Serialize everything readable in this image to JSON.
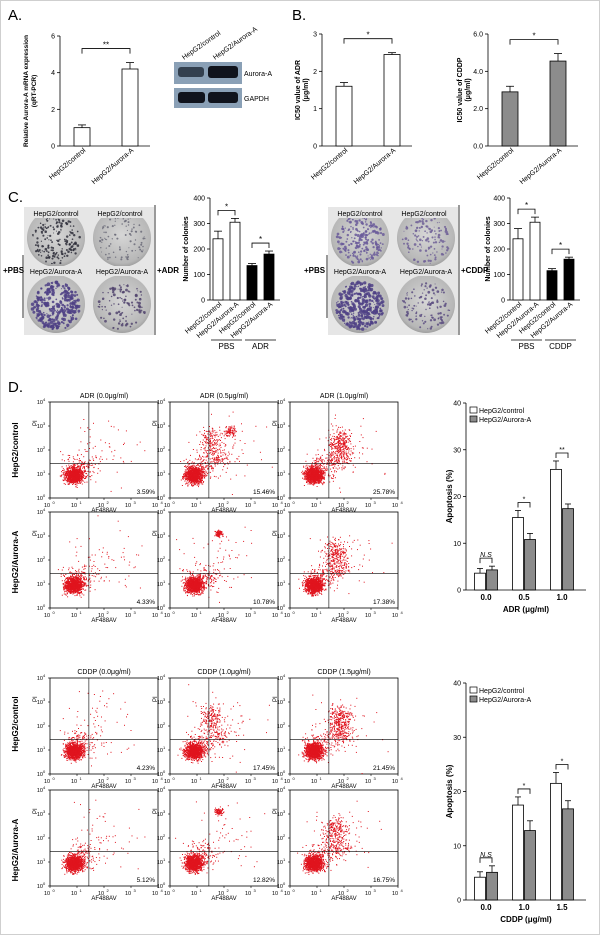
{
  "panel_labels": [
    "A.",
    "B.",
    "C.",
    "D."
  ],
  "colors": {
    "bar_white": "#ffffff",
    "bar_gray": "#8c8c8c",
    "bar_black": "#000000",
    "dot_red": "#e0141e",
    "plate_gray": "#bdbdbd",
    "colony_purple": "#4e3f85",
    "blot_bg": "#8aa0b6",
    "blot_band": "#10131c"
  },
  "western_blot": {
    "lanes": [
      "HepG2/control",
      "HepG2/Aurora-A"
    ],
    "bands": [
      "Aurora-A",
      "GAPDH"
    ]
  },
  "colony_plates": {
    "adr": {
      "top_row": [
        "HepG2/control",
        "HepG2/control"
      ],
      "bottom_row": [
        "HepG2/Aurora-A",
        "HepG2/Aurora-A"
      ],
      "left_tag": "+PBS",
      "right_tag": "+ADR"
    },
    "cddp": {
      "top_row": [
        "HepG2/control",
        "HepG2/control"
      ],
      "bottom_row": [
        "HepG2/Aurora-A",
        "HepG2/Aurora-A"
      ],
      "left_tag": "+PBS",
      "right_tag": "+CDDP"
    }
  },
  "flow": {
    "row_labels": [
      "HepG2/control",
      "HepG2/Aurora-A"
    ],
    "x_label": "AF488AV",
    "y_label": "PI",
    "tick_labels": [
      "10",
      "10",
      "10",
      "10",
      "10"
    ],
    "tick_exponents": [
      "0",
      "1",
      "2",
      "3",
      "4"
    ],
    "adr_titles": [
      "ADR (0.0μg/ml)",
      "ADR (0.5μg/ml)",
      "ADR (1.0μg/ml)"
    ],
    "adr_percent": [
      [
        "3.59%",
        "15.46%",
        "25.78%"
      ],
      [
        "4.33%",
        "10.78%",
        "17.38%"
      ]
    ],
    "cddp_titles": [
      "CDDP (0.0μg/ml)",
      "CDDP (1.0μg/ml)",
      "CDDP (1.5μg/ml)"
    ],
    "cddp_percent": [
      [
        "4.23%",
        "17.45%",
        "21.45%"
      ],
      [
        "5.12%",
        "12.82%",
        "16.75%"
      ]
    ]
  },
  "chart_data": [
    {
      "id": "A",
      "type": "bar",
      "categories": [
        "HepG2/control",
        "HepG2/Aurora-A"
      ],
      "values": [
        1.0,
        4.2
      ],
      "errors": [
        0.15,
        0.35
      ],
      "ylabel": "Relative Aurora-A mRNA expression (qRT-PCR)",
      "ylim": [
        0,
        6
      ],
      "yticks": [
        "0",
        "2",
        "4",
        "6"
      ],
      "significance": [
        "**"
      ]
    },
    {
      "id": "B-ADR",
      "type": "bar",
      "categories": [
        "HepG2/control",
        "HepG2/Aurora-A"
      ],
      "values": [
        1.6,
        2.45
      ],
      "errors": [
        0.1,
        0.05
      ],
      "ylabel": "IC50 value of ADR (μg/ml)",
      "ylim": [
        0,
        3
      ],
      "yticks": [
        "0",
        "1",
        "2",
        "3"
      ],
      "significance": [
        "*"
      ]
    },
    {
      "id": "B-CDDP",
      "type": "bar",
      "categories": [
        "HepG2/control",
        "HepG2/Aurora-A"
      ],
      "values": [
        2.9,
        4.55
      ],
      "errors": [
        0.3,
        0.4
      ],
      "ylabel": "IC50 value of CDDP (μg/ml)",
      "ylim": [
        0,
        6
      ],
      "yticks": [
        "0.0",
        "2.0",
        "4.0",
        "6.0"
      ],
      "significance": [
        "*"
      ]
    },
    {
      "id": "C-ADR",
      "type": "bar",
      "categories": [
        "HepG2/control",
        "HepG2/Aurora-A",
        "HepG2/control",
        "HepG2/Aurora-A"
      ],
      "values": [
        240,
        305,
        135,
        180
      ],
      "errors": [
        30,
        15,
        8,
        12
      ],
      "ylabel": "Number of colonies",
      "ylim": [
        0,
        400
      ],
      "yticks": [
        "0",
        "100",
        "200",
        "300",
        "400"
      ],
      "groups": [
        "PBS",
        "ADR"
      ],
      "significance": [
        "*",
        "*"
      ]
    },
    {
      "id": "C-CDDP",
      "type": "bar",
      "categories": [
        "HepG2/control",
        "HepG2/Aurora-A",
        "HepG2/control",
        "HepG2/Aurora-A"
      ],
      "values": [
        240,
        305,
        115,
        160
      ],
      "errors": [
        40,
        20,
        8,
        8
      ],
      "ylabel": "Number of colonies",
      "ylim": [
        0,
        400
      ],
      "yticks": [
        "0",
        "100",
        "200",
        "300",
        "400"
      ],
      "groups": [
        "PBS",
        "CDDP"
      ],
      "significance": [
        "*",
        "*"
      ]
    },
    {
      "id": "D-ADR",
      "type": "bar",
      "categories": [
        "0.0",
        "0.5",
        "1.0"
      ],
      "xlabel": "ADR (μg/ml)",
      "ylabel": "Apoptosis (%)",
      "ylim": [
        0,
        40
      ],
      "yticks": [
        "0",
        "10",
        "20",
        "30",
        "40"
      ],
      "series": [
        {
          "name": "HepG2/control",
          "values": [
            3.6,
            15.5,
            25.8
          ],
          "errors": [
            1.0,
            1.5,
            1.8
          ]
        },
        {
          "name": "HepG2/Aurora-A",
          "values": [
            4.3,
            10.8,
            17.4
          ],
          "errors": [
            0.8,
            1.3,
            1.0
          ]
        }
      ],
      "significance": [
        "N.S",
        "*",
        "**"
      ]
    },
    {
      "id": "D-CDDP",
      "type": "bar",
      "categories": [
        "0.0",
        "1.0",
        "1.5"
      ],
      "xlabel": "CDDP (μg/ml)",
      "ylabel": "Apoptosis (%)",
      "ylim": [
        0,
        40
      ],
      "yticks": [
        "0",
        "10",
        "20",
        "30",
        "40"
      ],
      "series": [
        {
          "name": "HepG2/control",
          "values": [
            4.2,
            17.5,
            21.5
          ],
          "errors": [
            1.0,
            1.5,
            2.0
          ]
        },
        {
          "name": "HepG2/Aurora-A",
          "values": [
            5.1,
            12.8,
            16.8
          ],
          "errors": [
            1.2,
            1.8,
            1.5
          ]
        }
      ],
      "significance": [
        "N.S",
        "*",
        "*"
      ]
    }
  ]
}
